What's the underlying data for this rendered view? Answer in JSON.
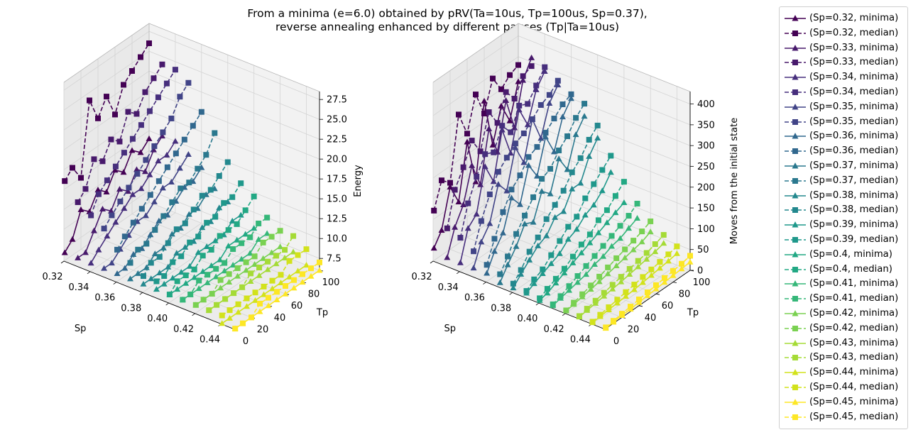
{
  "title_lines": [
    "From a minima (e=6.0) obtained by pRV(Ta=10us, Tp=100us, Sp=0.37),",
    "reverse annealing enhanced by different pauses (Tp|Ta=10us)"
  ],
  "chart_data": [
    {
      "type": "line3d",
      "xlabel": "Sp",
      "ylabel": "Tp",
      "zlabel": "Energy",
      "xlim": [
        0.32,
        0.45
      ],
      "ylim": [
        0,
        100
      ],
      "zlim": [
        6,
        28.5
      ],
      "x_ticks": [
        "0.32",
        "0.34",
        "0.36",
        "0.38",
        "0.40",
        "0.42",
        "0.44"
      ],
      "y_ticks": [
        "0",
        "20",
        "40",
        "60",
        "80",
        "100"
      ],
      "z_ticks": [
        "7.5",
        "10.0",
        "12.5",
        "15.0",
        "17.5",
        "20.0",
        "22.5",
        "25.0",
        "27.5"
      ],
      "grid": true,
      "tp": [
        1,
        10,
        20,
        30,
        40,
        50,
        60,
        70,
        80,
        90,
        100
      ],
      "series": [
        {
          "sp": 0.32,
          "minima": [
            7,
            8,
            11,
            10,
            12,
            11,
            13,
            12,
            14,
            13,
            14
          ],
          "median": [
            16,
            17,
            15,
            24,
            21,
            23,
            20,
            23,
            24,
            25,
            26
          ]
        },
        {
          "sp": 0.33,
          "minima": [
            7,
            7,
            9,
            11,
            10,
            12,
            11,
            13,
            12,
            14,
            15
          ],
          "median": [
            14,
            15,
            18,
            17,
            19,
            18,
            21,
            20,
            22,
            23,
            24
          ]
        },
        {
          "sp": 0.34,
          "minima": [
            7,
            8,
            9,
            10,
            11,
            12,
            12,
            13,
            14,
            14,
            15
          ],
          "median": [
            13,
            15,
            16,
            17,
            18,
            19,
            20,
            21,
            22,
            23,
            24
          ]
        },
        {
          "sp": 0.35,
          "minima": [
            7,
            7,
            8,
            9,
            10,
            10,
            11,
            12,
            12,
            13,
            14
          ],
          "median": [
            12,
            13,
            14,
            15,
            16,
            17,
            18,
            19,
            20,
            22,
            23
          ]
        },
        {
          "sp": 0.36,
          "minima": [
            7,
            7,
            8,
            8,
            9,
            10,
            10,
            11,
            12,
            12,
            13
          ],
          "median": [
            10,
            11,
            12,
            13,
            14,
            15,
            16,
            17,
            18,
            19,
            20
          ]
        },
        {
          "sp": 0.37,
          "minima": [
            7,
            7,
            7,
            8,
            8,
            9,
            9,
            10,
            10,
            11,
            11
          ],
          "median": [
            9,
            10,
            10,
            11,
            12,
            13,
            14,
            14,
            15,
            16,
            18
          ]
        },
        {
          "sp": 0.38,
          "minima": [
            7,
            7,
            7,
            7,
            8,
            8,
            8,
            9,
            9,
            10,
            10
          ],
          "median": [
            8,
            9,
            9,
            10,
            11,
            11,
            12,
            13,
            13,
            14,
            15
          ]
        },
        {
          "sp": 0.39,
          "minima": [
            7,
            7,
            7,
            7,
            7,
            8,
            8,
            8,
            8,
            9,
            9
          ],
          "median": [
            8,
            8,
            9,
            9,
            10,
            10,
            11,
            11,
            12,
            12,
            13
          ]
        },
        {
          "sp": 0.4,
          "minima": [
            7,
            7,
            7,
            7,
            7,
            7,
            7,
            8,
            8,
            8,
            8
          ],
          "median": [
            7,
            8,
            8,
            8,
            9,
            9,
            10,
            10,
            10,
            11,
            12
          ]
        },
        {
          "sp": 0.41,
          "minima": [
            7,
            7,
            7,
            7,
            7,
            7,
            7,
            7,
            7,
            8,
            8
          ],
          "median": [
            7,
            7,
            8,
            8,
            8,
            8,
            9,
            9,
            9,
            10,
            10
          ]
        },
        {
          "sp": 0.42,
          "minima": [
            7,
            7,
            7,
            7,
            7,
            7,
            7,
            7,
            7,
            7,
            7
          ],
          "median": [
            7,
            7,
            7,
            8,
            8,
            8,
            8,
            8,
            9,
            9,
            9
          ]
        },
        {
          "sp": 0.43,
          "minima": [
            7,
            7,
            7,
            7,
            7,
            7,
            7,
            7,
            7,
            7,
            7
          ],
          "median": [
            7,
            7,
            7,
            7,
            7,
            8,
            8,
            8,
            8,
            8,
            9
          ]
        },
        {
          "sp": 0.44,
          "minima": [
            6,
            6,
            6,
            6,
            6,
            6,
            6,
            6,
            6,
            6,
            6
          ],
          "median": [
            7,
            7,
            7,
            7,
            7,
            7,
            7,
            7,
            8,
            8,
            8
          ]
        },
        {
          "sp": 0.45,
          "minima": [
            6,
            6,
            6,
            6,
            6,
            6,
            6,
            6,
            6,
            6,
            6
          ],
          "median": [
            6,
            6,
            6,
            7,
            7,
            7,
            7,
            7,
            7,
            7,
            7
          ]
        }
      ]
    },
    {
      "type": "line3d",
      "xlabel": "Sp",
      "ylabel": "Tp",
      "zlabel": "Moves from the initial state",
      "xlim": [
        0.32,
        0.45
      ],
      "ylim": [
        0,
        100
      ],
      "zlim": [
        0,
        430
      ],
      "x_ticks": [
        "0.32",
        "0.34",
        "0.36",
        "0.38",
        "0.40",
        "0.42",
        "0.44"
      ],
      "y_ticks": [
        "0",
        "20",
        "40",
        "60",
        "80",
        "100"
      ],
      "z_ticks": [
        "0",
        "50",
        "100",
        "150",
        "200",
        "250",
        "300",
        "350",
        "400"
      ],
      "grid": true,
      "tp": [
        1,
        10,
        20,
        30,
        40,
        50,
        60,
        70,
        80,
        90,
        100
      ],
      "series": [
        {
          "sp": 0.32,
          "minima": [
            30,
            60,
            150,
            100,
            230,
            120,
            300,
            180,
            260,
            210,
            290
          ],
          "median": [
            120,
            180,
            160,
            310,
            250,
            330,
            270,
            340,
            300,
            320,
            330
          ]
        },
        {
          "sp": 0.33,
          "minima": [
            20,
            80,
            120,
            200,
            140,
            260,
            190,
            300,
            220,
            320,
            360
          ],
          "median": [
            90,
            170,
            210,
            260,
            220,
            300,
            260,
            320,
            290,
            330,
            340
          ]
        },
        {
          "sp": 0.34,
          "minima": [
            20,
            90,
            110,
            210,
            160,
            270,
            200,
            290,
            240,
            310,
            340
          ],
          "median": [
            80,
            150,
            200,
            240,
            230,
            280,
            250,
            300,
            290,
            320,
            350
          ]
        },
        {
          "sp": 0.35,
          "minima": [
            20,
            70,
            100,
            180,
            150,
            240,
            190,
            280,
            220,
            290,
            320
          ],
          "median": [
            60,
            120,
            170,
            210,
            230,
            250,
            260,
            280,
            300,
            310,
            330
          ]
        },
        {
          "sp": 0.36,
          "minima": [
            20,
            60,
            90,
            160,
            130,
            210,
            170,
            250,
            200,
            270,
            300
          ],
          "median": [
            40,
            90,
            140,
            180,
            200,
            230,
            240,
            260,
            280,
            300,
            310
          ]
        },
        {
          "sp": 0.37,
          "minima": [
            10,
            40,
            70,
            110,
            100,
            160,
            140,
            210,
            170,
            240,
            270
          ],
          "median": [
            30,
            60,
            100,
            130,
            160,
            190,
            200,
            230,
            250,
            280,
            300
          ]
        },
        {
          "sp": 0.38,
          "minima": [
            10,
            30,
            50,
            70,
            80,
            110,
            110,
            150,
            150,
            200,
            230
          ],
          "median": [
            20,
            40,
            70,
            90,
            120,
            140,
            160,
            190,
            210,
            240,
            260
          ]
        },
        {
          "sp": 0.39,
          "minima": [
            10,
            20,
            30,
            40,
            50,
            70,
            80,
            100,
            110,
            130,
            160
          ],
          "median": [
            15,
            30,
            40,
            60,
            80,
            100,
            110,
            140,
            160,
            180,
            200
          ]
        },
        {
          "sp": 0.4,
          "minima": [
            5,
            10,
            20,
            30,
            40,
            50,
            60,
            70,
            80,
            90,
            100
          ],
          "median": [
            10,
            20,
            30,
            40,
            55,
            70,
            80,
            100,
            110,
            130,
            150
          ]
        },
        {
          "sp": 0.41,
          "minima": [
            5,
            10,
            15,
            20,
            25,
            35,
            40,
            50,
            55,
            65,
            75
          ],
          "median": [
            8,
            15,
            25,
            35,
            45,
            55,
            65,
            75,
            85,
            95,
            110
          ]
        },
        {
          "sp": 0.42,
          "minima": [
            5,
            8,
            12,
            16,
            20,
            25,
            30,
            35,
            40,
            45,
            55
          ],
          "median": [
            6,
            12,
            18,
            25,
            32,
            40,
            48,
            55,
            62,
            70,
            80
          ]
        },
        {
          "sp": 0.43,
          "minima": [
            3,
            6,
            9,
            12,
            15,
            18,
            22,
            26,
            30,
            34,
            40
          ],
          "median": [
            5,
            10,
            15,
            20,
            25,
            30,
            35,
            40,
            45,
            52,
            60
          ]
        },
        {
          "sp": 0.44,
          "minima": [
            2,
            4,
            6,
            8,
            10,
            12,
            15,
            18,
            21,
            24,
            28
          ],
          "median": [
            4,
            8,
            12,
            16,
            20,
            24,
            28,
            32,
            36,
            40,
            45
          ]
        },
        {
          "sp": 0.45,
          "minima": [
            1,
            3,
            5,
            6,
            8,
            10,
            12,
            14,
            16,
            18,
            20
          ],
          "median": [
            3,
            6,
            9,
            12,
            15,
            18,
            21,
            24,
            27,
            30,
            35
          ]
        }
      ]
    }
  ],
  "colors": [
    "#440154",
    "#481a6c",
    "#472f7d",
    "#414487",
    "#39568c",
    "#31688e",
    "#2a788e",
    "#23888e",
    "#1f988b",
    "#22a884",
    "#35b779",
    "#54c568",
    "#7ad151",
    "#a5db36",
    "#d2e21b",
    "#fde725"
  ],
  "legend": {
    "placement": "right",
    "items": [
      {
        "label": "(Sp=0.32, minima)",
        "style": "solid",
        "marker": "triangle"
      },
      {
        "label": "(Sp=0.32, median)",
        "style": "dashed",
        "marker": "square"
      },
      {
        "label": "(Sp=0.33, minima)",
        "style": "solid",
        "marker": "triangle"
      },
      {
        "label": "(Sp=0.33, median)",
        "style": "dashed",
        "marker": "square"
      },
      {
        "label": "(Sp=0.34, minima)",
        "style": "solid",
        "marker": "triangle"
      },
      {
        "label": "(Sp=0.34, median)",
        "style": "dashed",
        "marker": "square"
      },
      {
        "label": "(Sp=0.35, minima)",
        "style": "solid",
        "marker": "triangle"
      },
      {
        "label": "(Sp=0.35, median)",
        "style": "dashed",
        "marker": "square"
      },
      {
        "label": "(Sp=0.36, minima)",
        "style": "solid",
        "marker": "triangle"
      },
      {
        "label": "(Sp=0.36, median)",
        "style": "dashed",
        "marker": "square"
      },
      {
        "label": "(Sp=0.37, minima)",
        "style": "solid",
        "marker": "triangle"
      },
      {
        "label": "(Sp=0.37, median)",
        "style": "dashed",
        "marker": "square"
      },
      {
        "label": "(Sp=0.38, minima)",
        "style": "solid",
        "marker": "triangle"
      },
      {
        "label": "(Sp=0.38, median)",
        "style": "dashed",
        "marker": "square"
      },
      {
        "label": "(Sp=0.39, minima)",
        "style": "solid",
        "marker": "triangle"
      },
      {
        "label": "(Sp=0.39, median)",
        "style": "dashed",
        "marker": "square"
      },
      {
        "label": "(Sp=0.4, minima)",
        "style": "solid",
        "marker": "triangle"
      },
      {
        "label": "(Sp=0.4, median)",
        "style": "dashed",
        "marker": "square"
      },
      {
        "label": "(Sp=0.41, minima)",
        "style": "solid",
        "marker": "triangle"
      },
      {
        "label": "(Sp=0.41, median)",
        "style": "dashed",
        "marker": "square"
      },
      {
        "label": "(Sp=0.42, minima)",
        "style": "solid",
        "marker": "triangle"
      },
      {
        "label": "(Sp=0.42, median)",
        "style": "dashed",
        "marker": "square"
      },
      {
        "label": "(Sp=0.43, minima)",
        "style": "solid",
        "marker": "triangle"
      },
      {
        "label": "(Sp=0.43, median)",
        "style": "dashed",
        "marker": "square"
      },
      {
        "label": "(Sp=0.44, minima)",
        "style": "solid",
        "marker": "triangle"
      },
      {
        "label": "(Sp=0.44, median)",
        "style": "dashed",
        "marker": "square"
      },
      {
        "label": "(Sp=0.45, minima)",
        "style": "solid",
        "marker": "triangle"
      },
      {
        "label": "(Sp=0.45, median)",
        "style": "dashed",
        "marker": "square"
      }
    ]
  }
}
